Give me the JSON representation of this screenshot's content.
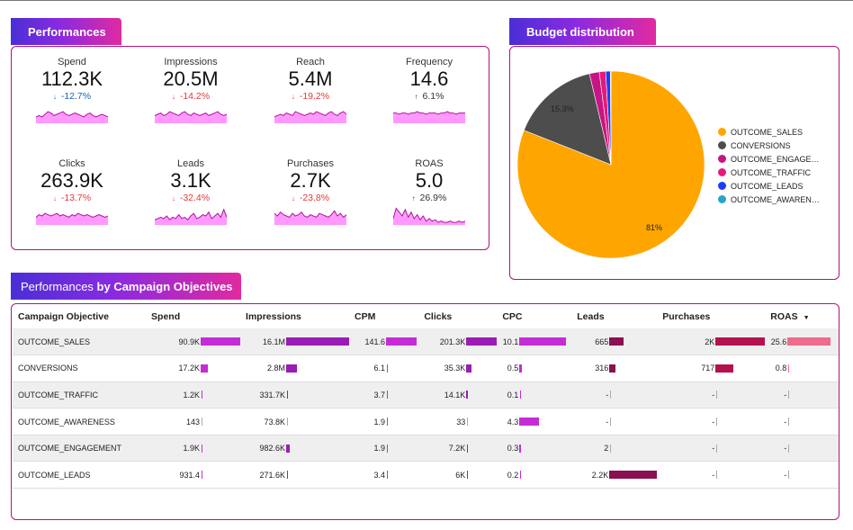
{
  "performances": {
    "title": "Performances",
    "kpis": [
      {
        "label": "Spend",
        "value": "112.3K",
        "delta": "-12.7%",
        "arrow": "↓",
        "trend": [
          5,
          6,
          5,
          7,
          9,
          8,
          6,
          7,
          8,
          9,
          7,
          6,
          7,
          8,
          7,
          6,
          5,
          7,
          8,
          6,
          5,
          6,
          7,
          6,
          5
        ]
      },
      {
        "label": "Impressions",
        "value": "20.5M",
        "delta": "-14.2%",
        "arrow": "↓",
        "trend": [
          6,
          7,
          8,
          6,
          7,
          9,
          8,
          7,
          6,
          8,
          9,
          7,
          6,
          8,
          7,
          6,
          7,
          8,
          6,
          7,
          8,
          9,
          7,
          6,
          7
        ]
      },
      {
        "label": "Reach",
        "value": "5.4M",
        "delta": "-19.2%",
        "arrow": "↓",
        "trend": [
          5,
          6,
          7,
          6,
          8,
          7,
          6,
          9,
          8,
          7,
          6,
          7,
          8,
          7,
          9,
          8,
          7,
          6,
          8,
          9,
          7,
          6,
          8,
          9,
          7
        ]
      },
      {
        "label": "Frequency",
        "value": "14.6",
        "delta": "6.1%",
        "arrow": "↑",
        "trend": [
          8,
          8,
          7,
          8,
          8,
          7,
          8,
          8,
          9,
          8,
          8,
          7,
          8,
          8,
          8,
          7,
          8,
          8,
          9,
          8,
          8,
          7,
          8,
          8,
          8
        ]
      },
      {
        "label": "Clicks",
        "value": "263.9K",
        "delta": "-13.7%",
        "arrow": "↓",
        "trend": [
          6,
          8,
          7,
          9,
          8,
          7,
          8,
          9,
          7,
          8,
          7,
          6,
          8,
          7,
          9,
          8,
          7,
          8,
          7,
          6,
          7,
          8,
          7,
          6,
          7
        ]
      },
      {
        "label": "Leads",
        "value": "3.1K",
        "delta": "-32.4%",
        "arrow": "↓",
        "trend": [
          4,
          5,
          6,
          5,
          7,
          4,
          6,
          5,
          8,
          5,
          6,
          4,
          7,
          9,
          5,
          6,
          8,
          7,
          10,
          5,
          7,
          9,
          6,
          12,
          6
        ]
      },
      {
        "label": "Purchases",
        "value": "2.7K",
        "delta": "-23.8%",
        "arrow": "↓",
        "trend": [
          9,
          7,
          10,
          8,
          7,
          6,
          9,
          7,
          8,
          10,
          7,
          6,
          8,
          7,
          6,
          9,
          8,
          7,
          6,
          8,
          11,
          7,
          9,
          6,
          8
        ]
      },
      {
        "label": "ROAS",
        "value": "5.0",
        "delta": "26.9%",
        "arrow": "↑",
        "trend": [
          5,
          13,
          10,
          7,
          12,
          6,
          10,
          5,
          8,
          4,
          7,
          3,
          5,
          3,
          4,
          2,
          3,
          2,
          2,
          3,
          2,
          2,
          3,
          2,
          3
        ]
      }
    ]
  },
  "budget": {
    "title": "Budget distribution",
    "labels": {
      "sales_pct": "81%",
      "conversions_pct": "15.3%"
    },
    "legend": [
      {
        "name": "OUTCOME_SALES",
        "color": "#ffa500",
        "share": 81.0
      },
      {
        "name": "CONVERSIONS",
        "color": "#4d4d4d",
        "share": 15.3
      },
      {
        "name": "OUTCOME_ENGAGE…",
        "color": "#c71585",
        "share": 1.7
      },
      {
        "name": "OUTCOME_TRAFFIC",
        "color": "#e6197a",
        "share": 1.1
      },
      {
        "name": "OUTCOME_LEADS",
        "color": "#1a3cff",
        "share": 0.8
      },
      {
        "name": "OUTCOME_AWAREN…",
        "color": "#26a6c9",
        "share": 0.1
      }
    ]
  },
  "table": {
    "title_a": "Performances",
    "title_b": " by Campaign Objectives",
    "headers": [
      "Campaign Objective",
      "Spend",
      "Impressions",
      "CPM",
      "Clicks",
      "CPC",
      "Leads",
      "Purchases",
      "ROAS"
    ],
    "sort_icon": "▼",
    "rows": [
      {
        "objective": "OUTCOME_SALES",
        "spend": "90.9K",
        "impressions": "16.1M",
        "cpm": "141.6",
        "clicks": "201.3K",
        "cpc": "10.1",
        "leads": "665",
        "purchases": "2K",
        "roas": "25.6",
        "fill": {
          "spend": 1.0,
          "impressions": 1.0,
          "cpm": 1.0,
          "clicks": 1.0,
          "cpc": 1.0,
          "leads": 0.3,
          "purchases": 1.0,
          "roas": 1.0
        }
      },
      {
        "objective": "CONVERSIONS",
        "spend": "17.2K",
        "impressions": "2.8M",
        "cpm": "6.1",
        "clicks": "35.3K",
        "cpc": "0.5",
        "leads": "316",
        "purchases": "717",
        "roas": "0.8",
        "fill": {
          "spend": 0.19,
          "impressions": 0.17,
          "cpm": 0.04,
          "clicks": 0.18,
          "cpc": 0.05,
          "leads": 0.14,
          "purchases": 0.36,
          "roas": 0.03
        }
      },
      {
        "objective": "OUTCOME_TRAFFIC",
        "spend": "1.2K",
        "impressions": "331.7K",
        "cpm": "3.7",
        "clicks": "14.1K",
        "cpc": "0.1",
        "leads": "-",
        "purchases": "-",
        "roas": "-",
        "fill": {
          "spend": 0.01,
          "impressions": 0.02,
          "cpm": 0.03,
          "clicks": 0.07,
          "cpc": 0.01,
          "leads": 0,
          "purchases": 0,
          "roas": 0
        }
      },
      {
        "objective": "OUTCOME_AWARENESS",
        "spend": "143",
        "impressions": "73.8K",
        "cpm": "1.9",
        "clicks": "33",
        "cpc": "4.3",
        "leads": "-",
        "purchases": "-",
        "roas": "-",
        "fill": {
          "spend": 0,
          "impressions": 0,
          "cpm": 0.01,
          "clicks": 0,
          "cpc": 0.43,
          "leads": 0,
          "purchases": 0,
          "roas": 0
        }
      },
      {
        "objective": "OUTCOME_ENGAGEMENT",
        "spend": "1.9K",
        "impressions": "982.6K",
        "cpm": "1.9",
        "clicks": "7.2K",
        "cpc": "0.3",
        "leads": "2",
        "purchases": "-",
        "roas": "-",
        "fill": {
          "spend": 0.02,
          "impressions": 0.06,
          "cpm": 0.01,
          "clicks": 0.04,
          "cpc": 0.03,
          "leads": 0,
          "purchases": 0,
          "roas": 0
        }
      },
      {
        "objective": "OUTCOME_LEADS",
        "spend": "931.4",
        "impressions": "271.6K",
        "cpm": "3.4",
        "clicks": "6K",
        "cpc": "0.2",
        "leads": "2.2K",
        "purchases": "-",
        "roas": "-",
        "fill": {
          "spend": 0.01,
          "impressions": 0.02,
          "cpm": 0.02,
          "clicks": 0.03,
          "cpc": 0.02,
          "leads": 1.0,
          "purchases": 0,
          "roas": 0
        }
      }
    ]
  },
  "colors": {
    "accent_border": "#b3127e",
    "spark_fill": "#ff99ff",
    "spark_line": "#b0149a",
    "bar_violet": "#9b1bb5",
    "bar_magenta": "#c62cd6",
    "bar_maroon": "#8b1050",
    "bar_crimson": "#b3124f",
    "bar_pink": "#ee6b8b"
  }
}
